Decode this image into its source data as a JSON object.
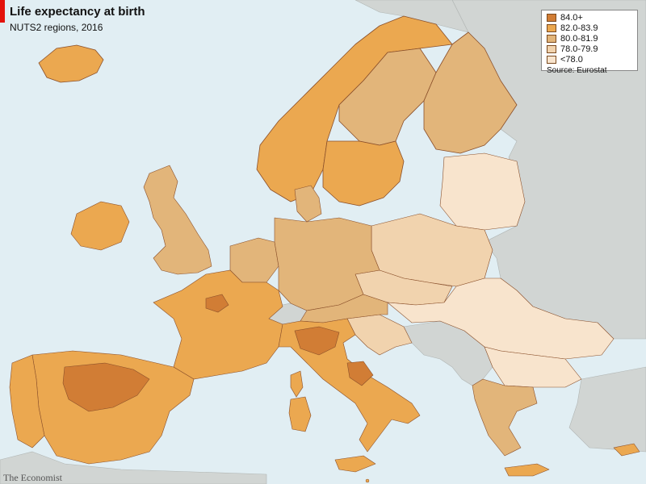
{
  "header": {
    "title": "Life expectancy at birth",
    "subtitle": "NUTS2 regions, 2016"
  },
  "legend": {
    "items": [
      {
        "label": "84.0+",
        "color": "#d17d35"
      },
      {
        "label": "82.0-83.9",
        "color": "#eba850"
      },
      {
        "label": "80.0-81.9",
        "color": "#e2b57a"
      },
      {
        "label": "78.0-79.9",
        "color": "#f1d3ae"
      },
      {
        "label": "<78.0",
        "color": "#f8e4cd"
      }
    ],
    "source": "Source: Eurostat"
  },
  "footer": {
    "brand": "The Economist"
  },
  "colors": {
    "sea": "#e1eef3",
    "non_eu_land": "#d1d5d3",
    "border": "#8a4f2a",
    "accent": "#e3120b"
  }
}
